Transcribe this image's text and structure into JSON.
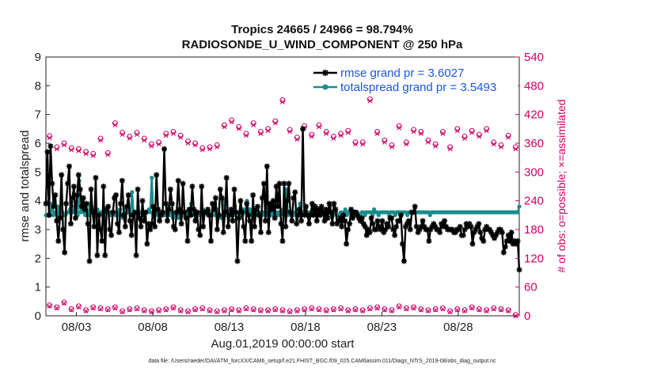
{
  "chart_data": {
    "type": "line",
    "title_line1": "Tropics 24665 / 24966 = 98.794%",
    "title_line2": "RADIOSONDE_U_WIND_COMPONENT @ 250 hPa",
    "xlabel": "Aug.01,2019 00:00:00 start",
    "ylabel": "rmse and totalspread",
    "ylabel_right": "# of obs: o=possible; ×=assimilated",
    "footer": "data file: /Users/raeder/DAI/ATM_forcXX/CAM6_setup/f.e21.FHIST_BGC.f09_025.CAM6assim.011/Diags_NTrS_2019-08/obs_diag_output.nc",
    "x_range_days": [
      1,
      32
    ],
    "ylim": [
      0,
      9
    ],
    "ylim_right": [
      0,
      540
    ],
    "yticks": [
      "0",
      "1",
      "2",
      "3",
      "4",
      "5",
      "6",
      "7",
      "8",
      "9"
    ],
    "yticks_right": [
      "0",
      "60",
      "120",
      "180",
      "240",
      "300",
      "360",
      "420",
      "480",
      "540"
    ],
    "xticks": [
      {
        "day": 3,
        "label": "08/03"
      },
      {
        "day": 8,
        "label": "08/08"
      },
      {
        "day": 13,
        "label": "08/13"
      },
      {
        "day": 18,
        "label": "08/18"
      },
      {
        "day": 23,
        "label": "08/23"
      },
      {
        "day": 28,
        "label": "08/28"
      }
    ],
    "legend": [
      {
        "name": "rmse grand pr = 3.6027",
        "color": "#000000"
      },
      {
        "name": "totalspread grand pr = 3.5493",
        "color": "#1a8c8c"
      }
    ],
    "series": [
      {
        "name": "rmse",
        "color": "#000000",
        "values": [
          3.9,
          5.7,
          3.5,
          5.9,
          4.6,
          3.8,
          4.2,
          3.3,
          2.6,
          3.4,
          4.9,
          3.0,
          2.2,
          3.9,
          4.6,
          5.2,
          3.2,
          4.1,
          4.5,
          3.4,
          4.2,
          4.9,
          4.4,
          3.8,
          4.1,
          3.7,
          3.9,
          3.2,
          1.9,
          4.4,
          3.6,
          3.1,
          4.8,
          2.1,
          3.5,
          3.0,
          2.6,
          4.5,
          2.1,
          3.7,
          3.8,
          3.0,
          2.8,
          3.6,
          4.1,
          4.2,
          3.2,
          2.9,
          3.9,
          4.7,
          3.5,
          3.1,
          3.8,
          4.2,
          3.3,
          2.8,
          3.5,
          3.6,
          2.1,
          4.4,
          3.4,
          3.1,
          4.0,
          3.3,
          3.6,
          2.5,
          3.2,
          3.0,
          3.2,
          3.8,
          3.1,
          4.9,
          3.7,
          3.3,
          3.5,
          3.6,
          5.8,
          3.9,
          3.3,
          3.7,
          4.4,
          3.9,
          3.1,
          3.0,
          3.6,
          4.7,
          3.7,
          3.2,
          4.6,
          3.6,
          3.4,
          2.6,
          3.7,
          3.5,
          4.5,
          3.7,
          3.3,
          3.6,
          3.0,
          2.8,
          4.5,
          3.1,
          3.6,
          3.6,
          3.7,
          3.5,
          2.6,
          3.9,
          3.7,
          4.1,
          3.0,
          3.5,
          4.4,
          4.1,
          2.9,
          3.6,
          4.8,
          3.1,
          3.5,
          3.7,
          3.3,
          4.4,
          3.6,
          1.9,
          3.4,
          4.0,
          3.6,
          3.1,
          2.6,
          3.9,
          3.5,
          3.3,
          2.6,
          4.2,
          3.1,
          3.7,
          3.8,
          3.5,
          2.9,
          4.1,
          4.6,
          3.3,
          5.2,
          2.9,
          3.9,
          3.7,
          4.0,
          3.4,
          4.5,
          3.8,
          4.6,
          3.2,
          2.6,
          4.6,
          3.1,
          4.0,
          4.6,
          3.6,
          3.3,
          4.1,
          4.3,
          3.2,
          3.5,
          3.7,
          3.3,
          6.5,
          3.5,
          3.8,
          3.5,
          3.2,
          3.5,
          3.9,
          3.5,
          3.8,
          3.3,
          3.7,
          3.5,
          3.8,
          3.6,
          3.3,
          3.7,
          3.4,
          3.9,
          3.6,
          3.2,
          3.9,
          3.7,
          3.2,
          3.3,
          3.4,
          3.1,
          3.5,
          3.3,
          2.5,
          3.0,
          3.2,
          3.7,
          3.4,
          3.6,
          3.6,
          3.5,
          3.4,
          3.3,
          3.4,
          3.2,
          3.1,
          2.8,
          3.0,
          2.9,
          3.4,
          3.2,
          3.0,
          3.0,
          3.3,
          3.1,
          3.0,
          3.3,
          2.9,
          3.0,
          3.2,
          3.1,
          3.4,
          3.4,
          3.0,
          2.8,
          3.1,
          3.3,
          3.3,
          3.5,
          2.5,
          1.9,
          3.1,
          3.2,
          3.3,
          3.0,
          3.6,
          3.6,
          3.8,
          3.1,
          2.9,
          3.0,
          3.1,
          3.3,
          3.1,
          3.0,
          3.0,
          2.6,
          3.0,
          3.1,
          3.2,
          3.1,
          3.0,
          3.0,
          2.9,
          3.2,
          3.1,
          3.3,
          3.1,
          3.0,
          3.0,
          3.0,
          3.0,
          2.9,
          2.9,
          3.0,
          3.0,
          3.1,
          2.8,
          2.8,
          3.0,
          3.2,
          3.1,
          3.2,
          3.1,
          2.5,
          2.9,
          3.0,
          3.1,
          3.2,
          2.9,
          2.7,
          2.6,
          3.0,
          3.1,
          3.0,
          3.0,
          2.9,
          2.8,
          2.7,
          2.8,
          2.9,
          3.0,
          3.0,
          2.9,
          2.2,
          2.4,
          2.6,
          2.8,
          2.6,
          2.9,
          2.5,
          2.6,
          2.5,
          2.6,
          1.6
        ],
        "note": "rmse series (markers)"
      },
      {
        "name": "totalspread",
        "color": "#1a8c8c",
        "values": [
          3.5,
          3.5,
          3.5,
          3.5,
          3.9,
          3.5,
          3.6,
          3.6,
          3.8,
          3.5,
          3.7,
          3.6,
          3.5,
          3.5,
          3.6,
          3.6,
          3.7,
          3.6,
          3.6,
          3.8,
          3.6,
          3.5,
          4.7,
          3.6,
          3.8,
          3.6,
          3.5,
          3.6,
          3.5,
          3.9,
          3.8,
          3.7,
          3.6,
          3.6,
          3.7,
          3.6,
          3.6,
          3.6,
          3.5,
          3.6,
          3.6,
          3.6,
          3.6,
          3.5,
          3.6,
          3.6,
          3.5,
          3.6,
          3.5,
          3.7,
          3.5,
          3.4,
          3.6,
          3.7,
          3.6,
          3.6,
          3.5,
          4.3,
          3.5,
          3.6,
          3.6,
          3.5,
          3.6,
          3.6,
          3.5,
          3.5,
          3.6,
          3.6,
          3.7,
          3.6,
          4.8,
          3.5,
          3.6,
          3.6,
          3.5,
          3.4,
          3.6,
          3.6,
          3.5,
          3.5,
          3.6,
          3.8,
          3.5,
          3.6,
          3.4,
          3.6,
          3.5,
          3.6,
          3.4,
          3.6,
          3.5,
          3.5,
          3.6,
          3.5,
          3.6,
          3.5,
          3.9,
          3.5,
          3.6,
          3.6,
          3.5,
          3.6,
          3.5,
          3.6,
          3.7,
          3.6,
          3.6,
          3.5,
          3.6,
          3.6,
          3.5,
          3.9,
          3.5,
          3.7,
          3.6,
          3.5,
          3.4,
          3.5,
          4.0,
          3.5,
          3.6,
          3.5,
          3.6,
          3.6,
          3.5,
          3.8,
          3.6,
          3.6,
          3.5,
          3.7,
          3.5,
          3.7,
          3.6,
          4.0,
          3.6,
          3.7,
          3.5,
          3.6,
          3.5,
          3.6,
          3.5,
          3.5,
          3.6,
          3.5,
          3.6,
          3.5,
          3.5,
          3.6,
          3.7,
          3.5,
          3.7,
          3.5,
          3.6,
          3.5,
          3.6,
          3.5,
          3.6,
          3.7,
          3.5,
          4.4,
          3.5,
          3.6,
          3.5,
          3.6,
          3.5,
          3.6,
          3.6,
          3.7,
          3.9,
          3.5,
          3.6,
          3.6,
          3.6,
          3.5,
          3.6,
          3.5,
          3.6,
          3.5,
          3.5,
          3.6,
          3.5,
          3.6,
          3.5,
          3.6,
          3.5,
          3.7,
          3.6,
          3.6,
          3.8,
          3.5,
          3.5,
          3.7,
          3.6,
          3.5,
          3.5,
          3.6,
          3.5,
          3.6,
          3.7,
          3.5,
          3.6,
          3.6,
          3.5,
          3.6,
          3.5,
          3.6,
          3.6,
          3.5,
          3.5,
          3.6,
          3.6,
          3.5,
          3.6,
          3.6,
          3.6,
          3.6,
          3.5,
          3.7,
          3.6,
          3.6,
          3.5,
          3.6,
          3.6,
          3.6,
          3.6,
          3.6,
          3.6,
          3.5,
          3.6,
          3.6,
          3.6,
          3.5,
          3.6,
          3.6,
          3.6,
          3.6,
          3.6,
          3.6,
          3.6,
          3.5,
          3.6,
          3.6,
          3.6,
          3.6,
          3.6,
          3.6,
          3.6,
          3.6,
          3.6,
          3.6,
          3.6,
          3.6,
          3.6,
          3.6,
          3.5,
          3.6,
          3.6,
          3.6,
          3.6,
          3.6,
          3.6,
          3.6,
          3.6,
          3.6,
          3.6,
          3.6,
          3.6,
          3.6,
          3.6,
          3.6,
          3.6,
          3.6,
          3.6,
          3.6,
          3.6,
          3.6,
          3.6,
          3.6,
          3.6,
          3.6,
          3.6,
          3.6,
          3.6,
          3.6,
          3.6,
          3.6,
          3.6,
          3.6,
          3.6,
          3.6,
          3.6,
          3.6,
          3.6,
          3.6,
          3.6,
          3.6,
          3.6,
          3.6,
          3.6,
          3.6,
          3.6,
          3.6,
          3.6,
          3.6,
          3.6,
          3.6,
          3.6,
          3.6,
          3.6,
          3.6,
          3.6,
          3.6,
          3.6,
          3.8
        ],
        "note": "totalspread series"
      }
    ],
    "obs_possible": [
      375,
      352,
      360,
      350,
      348,
      342,
      338,
      370,
      340,
      402,
      382,
      374,
      382,
      370,
      358,
      362,
      380,
      384,
      376,
      364,
      360,
      350,
      352,
      356,
      398,
      408,
      394,
      380,
      402,
      384,
      390,
      406,
      450,
      388,
      372,
      396,
      378,
      398,
      384,
      374,
      380,
      386,
      362,
      362,
      452,
      384,
      366,
      356,
      396,
      362,
      388,
      384,
      366,
      358,
      384,
      352,
      390,
      374,
      386,
      378,
      390,
      362,
      356,
      376,
      352
    ],
    "obs_assimilated": [
      371,
      348,
      356,
      346,
      344,
      338,
      334,
      366,
      336,
      398,
      378,
      370,
      378,
      366,
      354,
      358,
      376,
      380,
      372,
      360,
      356,
      346,
      348,
      352,
      394,
      404,
      390,
      376,
      398,
      380,
      386,
      402,
      446,
      384,
      368,
      392,
      374,
      394,
      380,
      370,
      376,
      382,
      358,
      358,
      448,
      380,
      362,
      352,
      392,
      358,
      384,
      380,
      362,
      354,
      380,
      348,
      386,
      370,
      382,
      374,
      386,
      358,
      352,
      372,
      348
    ],
    "obs_low_possible": [
      22,
      18,
      28,
      14,
      20,
      12,
      18,
      16,
      14,
      18,
      10,
      14,
      16,
      12,
      10,
      12,
      14,
      18,
      12,
      10,
      14,
      16,
      12,
      10,
      12,
      14,
      12,
      16,
      14,
      12,
      12,
      14,
      12,
      10,
      12,
      14,
      16,
      14,
      12,
      14,
      16,
      12,
      14,
      12,
      16,
      18,
      14,
      12,
      20,
      16,
      18,
      14,
      12,
      14,
      16,
      10,
      14,
      12,
      18,
      14,
      12,
      16,
      14,
      12,
      2
    ],
    "obs_low_assimilated": [
      20,
      16,
      26,
      12,
      18,
      10,
      16,
      14,
      12,
      16,
      8,
      12,
      14,
      10,
      8,
      10,
      12,
      16,
      10,
      8,
      12,
      14,
      10,
      8,
      10,
      12,
      10,
      14,
      12,
      10,
      10,
      12,
      10,
      8,
      10,
      12,
      14,
      12,
      10,
      12,
      14,
      10,
      12,
      10,
      14,
      16,
      12,
      10,
      18,
      14,
      16,
      12,
      10,
      12,
      14,
      8,
      12,
      10,
      16,
      12,
      10,
      14,
      12,
      10,
      0
    ]
  }
}
